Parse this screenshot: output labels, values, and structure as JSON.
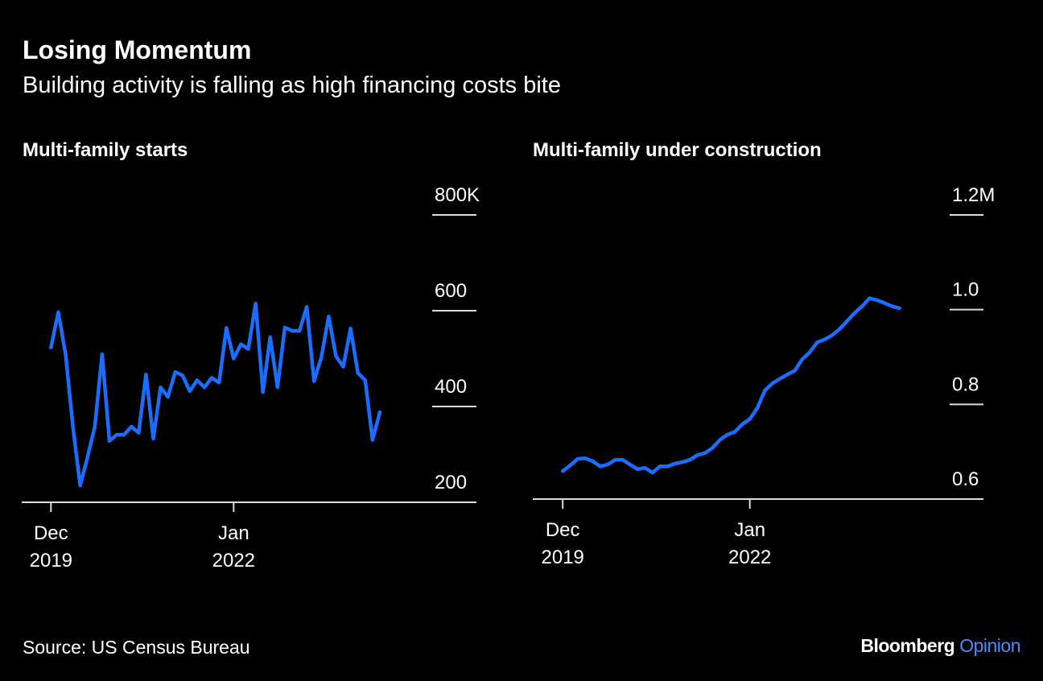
{
  "title": "Losing Momentum",
  "subtitle": "Building activity is falling as high financing costs bite",
  "source": "Source: US Census Bureau",
  "brand": {
    "name": "Bloomberg",
    "section": "Opinion"
  },
  "chart_data": [
    {
      "type": "line",
      "title": "Multi-family starts",
      "x": [
        "2019-12",
        "2020-01",
        "2020-02",
        "2020-03",
        "2020-04",
        "2020-05",
        "2020-06",
        "2020-07",
        "2020-08",
        "2020-09",
        "2020-10",
        "2020-11",
        "2020-12",
        "2021-01",
        "2021-02",
        "2021-03",
        "2021-04",
        "2021-05",
        "2021-06",
        "2021-07",
        "2021-08",
        "2021-09",
        "2021-10",
        "2021-11",
        "2021-12",
        "2022-01",
        "2022-02",
        "2022-03",
        "2022-04",
        "2022-05",
        "2022-06",
        "2022-07",
        "2022-08",
        "2022-09",
        "2022-10",
        "2022-11",
        "2022-12",
        "2023-01",
        "2023-02",
        "2023-03",
        "2023-04",
        "2023-05",
        "2023-06",
        "2023-07",
        "2023-08",
        "2023-09"
      ],
      "values": [
        523,
        597,
        509,
        358,
        235,
        294,
        358,
        509,
        328,
        341,
        341,
        358,
        345,
        467,
        333,
        440,
        420,
        472,
        465,
        432,
        455,
        440,
        460,
        450,
        564,
        500,
        530,
        520,
        615,
        430,
        545,
        440,
        565,
        558,
        558,
        608,
        453,
        503,
        588,
        505,
        483,
        563,
        470,
        455,
        330,
        388
      ],
      "color": "#1a6dff",
      "xlim": [
        "2019-08",
        "2024-10"
      ],
      "xticks": [
        {
          "value": "2019-12",
          "label": "Dec 2019"
        },
        {
          "value": "2022-01",
          "label": "Jan 2022"
        }
      ],
      "ylim": [
        200,
        800
      ],
      "yticks": [
        200,
        400,
        600,
        {
          "value": 800,
          "label": "800K"
        }
      ]
    },
    {
      "type": "line",
      "title": "Multi-family under construction",
      "x": [
        "2019-12",
        "2020-01",
        "2020-02",
        "2020-03",
        "2020-04",
        "2020-05",
        "2020-06",
        "2020-07",
        "2020-08",
        "2020-09",
        "2020-10",
        "2020-11",
        "2020-12",
        "2021-01",
        "2021-02",
        "2021-03",
        "2021-04",
        "2021-05",
        "2021-06",
        "2021-07",
        "2021-08",
        "2021-09",
        "2021-10",
        "2021-11",
        "2021-12",
        "2022-01",
        "2022-02",
        "2022-03",
        "2022-04",
        "2022-05",
        "2022-06",
        "2022-07",
        "2022-08",
        "2022-09",
        "2022-10",
        "2022-11",
        "2022-12",
        "2023-01",
        "2023-02",
        "2023-03",
        "2023-04",
        "2023-05",
        "2023-06",
        "2023-07",
        "2023-08",
        "2023-09"
      ],
      "values": [
        0.659,
        0.671,
        0.685,
        0.686,
        0.68,
        0.669,
        0.673,
        0.683,
        0.683,
        0.673,
        0.663,
        0.666,
        0.656,
        0.669,
        0.669,
        0.675,
        0.678,
        0.683,
        0.693,
        0.697,
        0.708,
        0.725,
        0.736,
        0.742,
        0.758,
        0.769,
        0.792,
        0.829,
        0.844,
        0.854,
        0.863,
        0.871,
        0.895,
        0.91,
        0.931,
        0.937,
        0.946,
        0.959,
        0.976,
        0.993,
        1.007,
        1.024,
        1.02,
        1.014,
        1.007,
        1.003
      ],
      "color": "#1a6dff",
      "xlim": [
        "2019-08",
        "2024-08"
      ],
      "xticks": [
        {
          "value": "2019-12",
          "label": "Dec 2019"
        },
        {
          "value": "2022-01",
          "label": "Jan 2022"
        }
      ],
      "ylim": [
        0.6,
        1.2
      ],
      "yticks": [
        0.6,
        0.8,
        {
          "value": 1,
          "label": "1.0"
        },
        {
          "value": 1.2,
          "label": "1.2M"
        }
      ]
    }
  ]
}
